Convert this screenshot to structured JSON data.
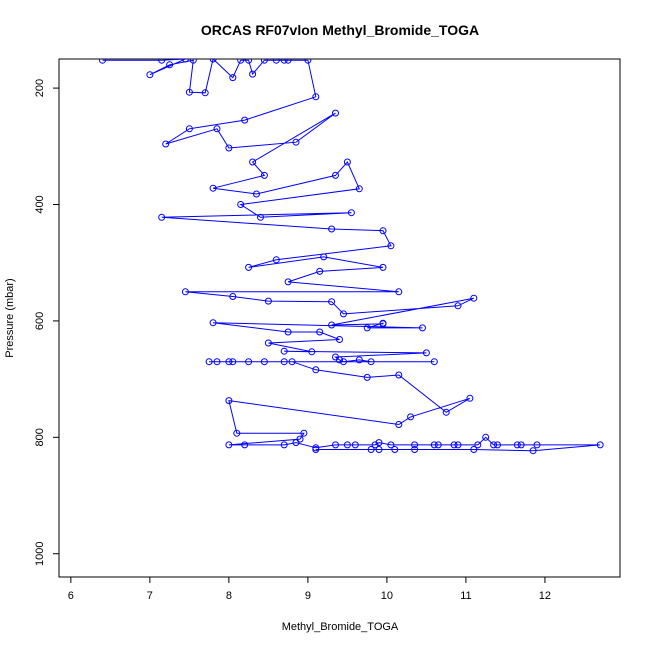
{
  "chart_data": {
    "type": "line",
    "title": "ORCAS RF07vlon Methyl_Bromide_TOGA",
    "xlabel": "Methyl_Bromide_TOGA",
    "ylabel": "Pressure (mbar)",
    "xlim": [
      5.85,
      12.95
    ],
    "ylim": [
      1040,
      150
    ],
    "y_reversed": true,
    "x_ticks": [
      6,
      7,
      8,
      9,
      10,
      11,
      12
    ],
    "y_ticks": [
      200,
      400,
      600,
      800,
      1000
    ],
    "grid": false,
    "legend": "none",
    "series": [
      {
        "color": "#0000ff",
        "marker": "open-circle",
        "points": [
          [
            6.4,
            152
          ],
          [
            7.15,
            152
          ],
          [
            7.45,
            150
          ],
          [
            7.0,
            177
          ],
          [
            7.25,
            160
          ],
          [
            7.55,
            152
          ],
          [
            7.5,
            207
          ],
          [
            7.7,
            208
          ],
          [
            7.8,
            150
          ],
          [
            8.05,
            182
          ],
          [
            8.15,
            152
          ],
          [
            8.25,
            152
          ],
          [
            8.3,
            176
          ],
          [
            8.45,
            152
          ],
          [
            8.6,
            152
          ],
          [
            8.7,
            152
          ],
          [
            8.75,
            152
          ],
          [
            9.0,
            152
          ],
          [
            9.1,
            215
          ],
          [
            8.2,
            255
          ],
          [
            7.5,
            270
          ],
          [
            7.2,
            296
          ],
          [
            7.85,
            270
          ],
          [
            8.0,
            303
          ],
          [
            8.85,
            293
          ],
          [
            9.35,
            243
          ],
          [
            8.3,
            327
          ],
          [
            8.45,
            350
          ],
          [
            7.8,
            372
          ],
          [
            8.35,
            382
          ],
          [
            9.35,
            350
          ],
          [
            9.5,
            327
          ],
          [
            9.65,
            373
          ],
          [
            8.15,
            400
          ],
          [
            8.4,
            422
          ],
          [
            9.55,
            414
          ],
          [
            7.15,
            422
          ],
          [
            9.3,
            442
          ],
          [
            9.95,
            445
          ],
          [
            10.05,
            471
          ],
          [
            8.6,
            495
          ],
          [
            8.25,
            508
          ],
          [
            9.2,
            490
          ],
          [
            9.95,
            508
          ],
          [
            9.15,
            515
          ],
          [
            8.75,
            533
          ],
          [
            10.15,
            550
          ],
          [
            7.45,
            550
          ],
          [
            8.05,
            558
          ],
          [
            8.5,
            566
          ],
          [
            9.3,
            567
          ],
          [
            9.45,
            588
          ],
          [
            10.9,
            574
          ],
          [
            11.1,
            561
          ],
          [
            9.3,
            607
          ],
          [
            9.95,
            605
          ],
          [
            9.95,
            604
          ],
          [
            9.75,
            612
          ],
          [
            10.45,
            612
          ],
          [
            7.8,
            603
          ],
          [
            8.75,
            619
          ],
          [
            9.15,
            619
          ],
          [
            9.4,
            632
          ],
          [
            8.5,
            638
          ],
          [
            9.05,
            653
          ],
          [
            8.7,
            652
          ],
          [
            10.5,
            655
          ],
          [
            9.35,
            662
          ],
          [
            9.4,
            667
          ],
          [
            9.45,
            670
          ],
          [
            9.65,
            667
          ],
          [
            9.8,
            670
          ],
          [
            10.6,
            670
          ],
          [
            7.75,
            670
          ],
          [
            7.85,
            670
          ],
          [
            8.0,
            670
          ],
          [
            8.05,
            670
          ],
          [
            8.25,
            670
          ],
          [
            8.45,
            670
          ],
          [
            8.7,
            670
          ],
          [
            8.8,
            670
          ],
          [
            9.1,
            684
          ],
          [
            9.75,
            697
          ],
          [
            10.15,
            693
          ],
          [
            10.75,
            757
          ],
          [
            11.05,
            733
          ],
          [
            10.3,
            765
          ],
          [
            10.15,
            778
          ],
          [
            8.0,
            737
          ],
          [
            8.1,
            793
          ],
          [
            8.95,
            793
          ],
          [
            8.9,
            803
          ],
          [
            8.0,
            813
          ],
          [
            8.2,
            813
          ],
          [
            8.7,
            813
          ],
          [
            8.85,
            809
          ],
          [
            9.1,
            818
          ],
          [
            9.35,
            813
          ],
          [
            9.5,
            813
          ],
          [
            9.6,
            813
          ],
          [
            9.85,
            813
          ],
          [
            9.9,
            809
          ],
          [
            10.05,
            813
          ],
          [
            10.35,
            813
          ],
          [
            10.6,
            813
          ],
          [
            10.65,
            813
          ],
          [
            10.85,
            813
          ],
          [
            10.9,
            813
          ],
          [
            11.15,
            813
          ],
          [
            11.25,
            800
          ],
          [
            11.35,
            813
          ],
          [
            11.4,
            813
          ],
          [
            11.65,
            813
          ],
          [
            11.7,
            813
          ],
          [
            11.9,
            813
          ],
          [
            12.7,
            813
          ],
          [
            11.85,
            823
          ],
          [
            11.1,
            821
          ],
          [
            10.35,
            821
          ],
          [
            10.1,
            821
          ],
          [
            9.9,
            821
          ],
          [
            9.8,
            821
          ],
          [
            9.1,
            821
          ]
        ]
      }
    ]
  }
}
